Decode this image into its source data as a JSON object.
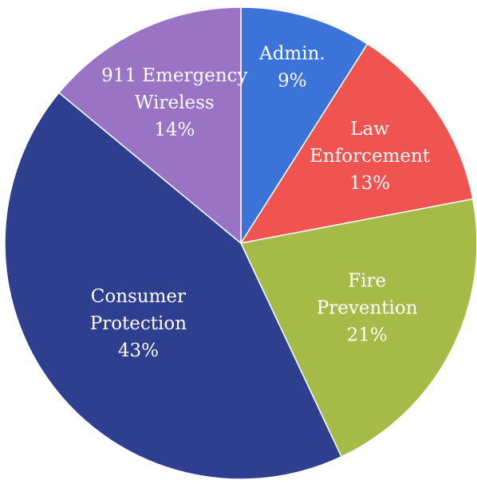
{
  "chart_data": {
    "type": "pie",
    "start_angle_deg": -90,
    "direction": "clockwise",
    "slices": [
      {
        "key": "admin",
        "lines": [
          "Admin.",
          "9%"
        ],
        "value": 9,
        "color": "#3B73D9"
      },
      {
        "key": "law-enforcement",
        "lines": [
          "Law",
          "Enforcement",
          "13%"
        ],
        "value": 13,
        "color": "#EF5450"
      },
      {
        "key": "fire-prevention",
        "lines": [
          "Fire",
          "Prevention",
          "21%"
        ],
        "value": 21,
        "color": "#A6BA47"
      },
      {
        "key": "consumer-protection",
        "lines": [
          "Consumer",
          "Protection",
          "43%"
        ],
        "value": 43,
        "color": "#2E3F8F"
      },
      {
        "key": "911-emergency-wireless",
        "lines": [
          "911 Emergency",
          "Wireless",
          "14%"
        ],
        "value": 14,
        "color": "#9A73C5"
      }
    ]
  }
}
